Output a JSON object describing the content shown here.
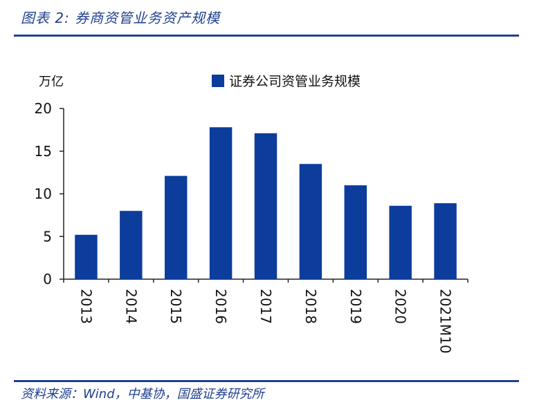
{
  "page": {
    "title": "图表 2:  券商资管业务资产规模",
    "source": "资料来源：Wind，中基协，国盛证券研究所"
  },
  "colors": {
    "bar": "#0c3c9c",
    "text": "#111111",
    "accent": "#1f3f8f",
    "axis": "#222222"
  },
  "chart_data": {
    "type": "bar",
    "unit_label": "万亿",
    "categories": [
      "2013",
      "2014",
      "2015",
      "2016",
      "2017",
      "2018",
      "2019",
      "2020",
      "2021M10"
    ],
    "series": [
      {
        "name": "证券公司资管业务规模",
        "values": [
          5.2,
          8.0,
          12.1,
          17.8,
          17.1,
          13.5,
          11.0,
          8.6,
          8.9
        ]
      }
    ],
    "yticks": [
      0,
      5,
      10,
      15,
      20
    ],
    "ylim": [
      0,
      20
    ],
    "grid": false,
    "legend_position": "top-center"
  }
}
